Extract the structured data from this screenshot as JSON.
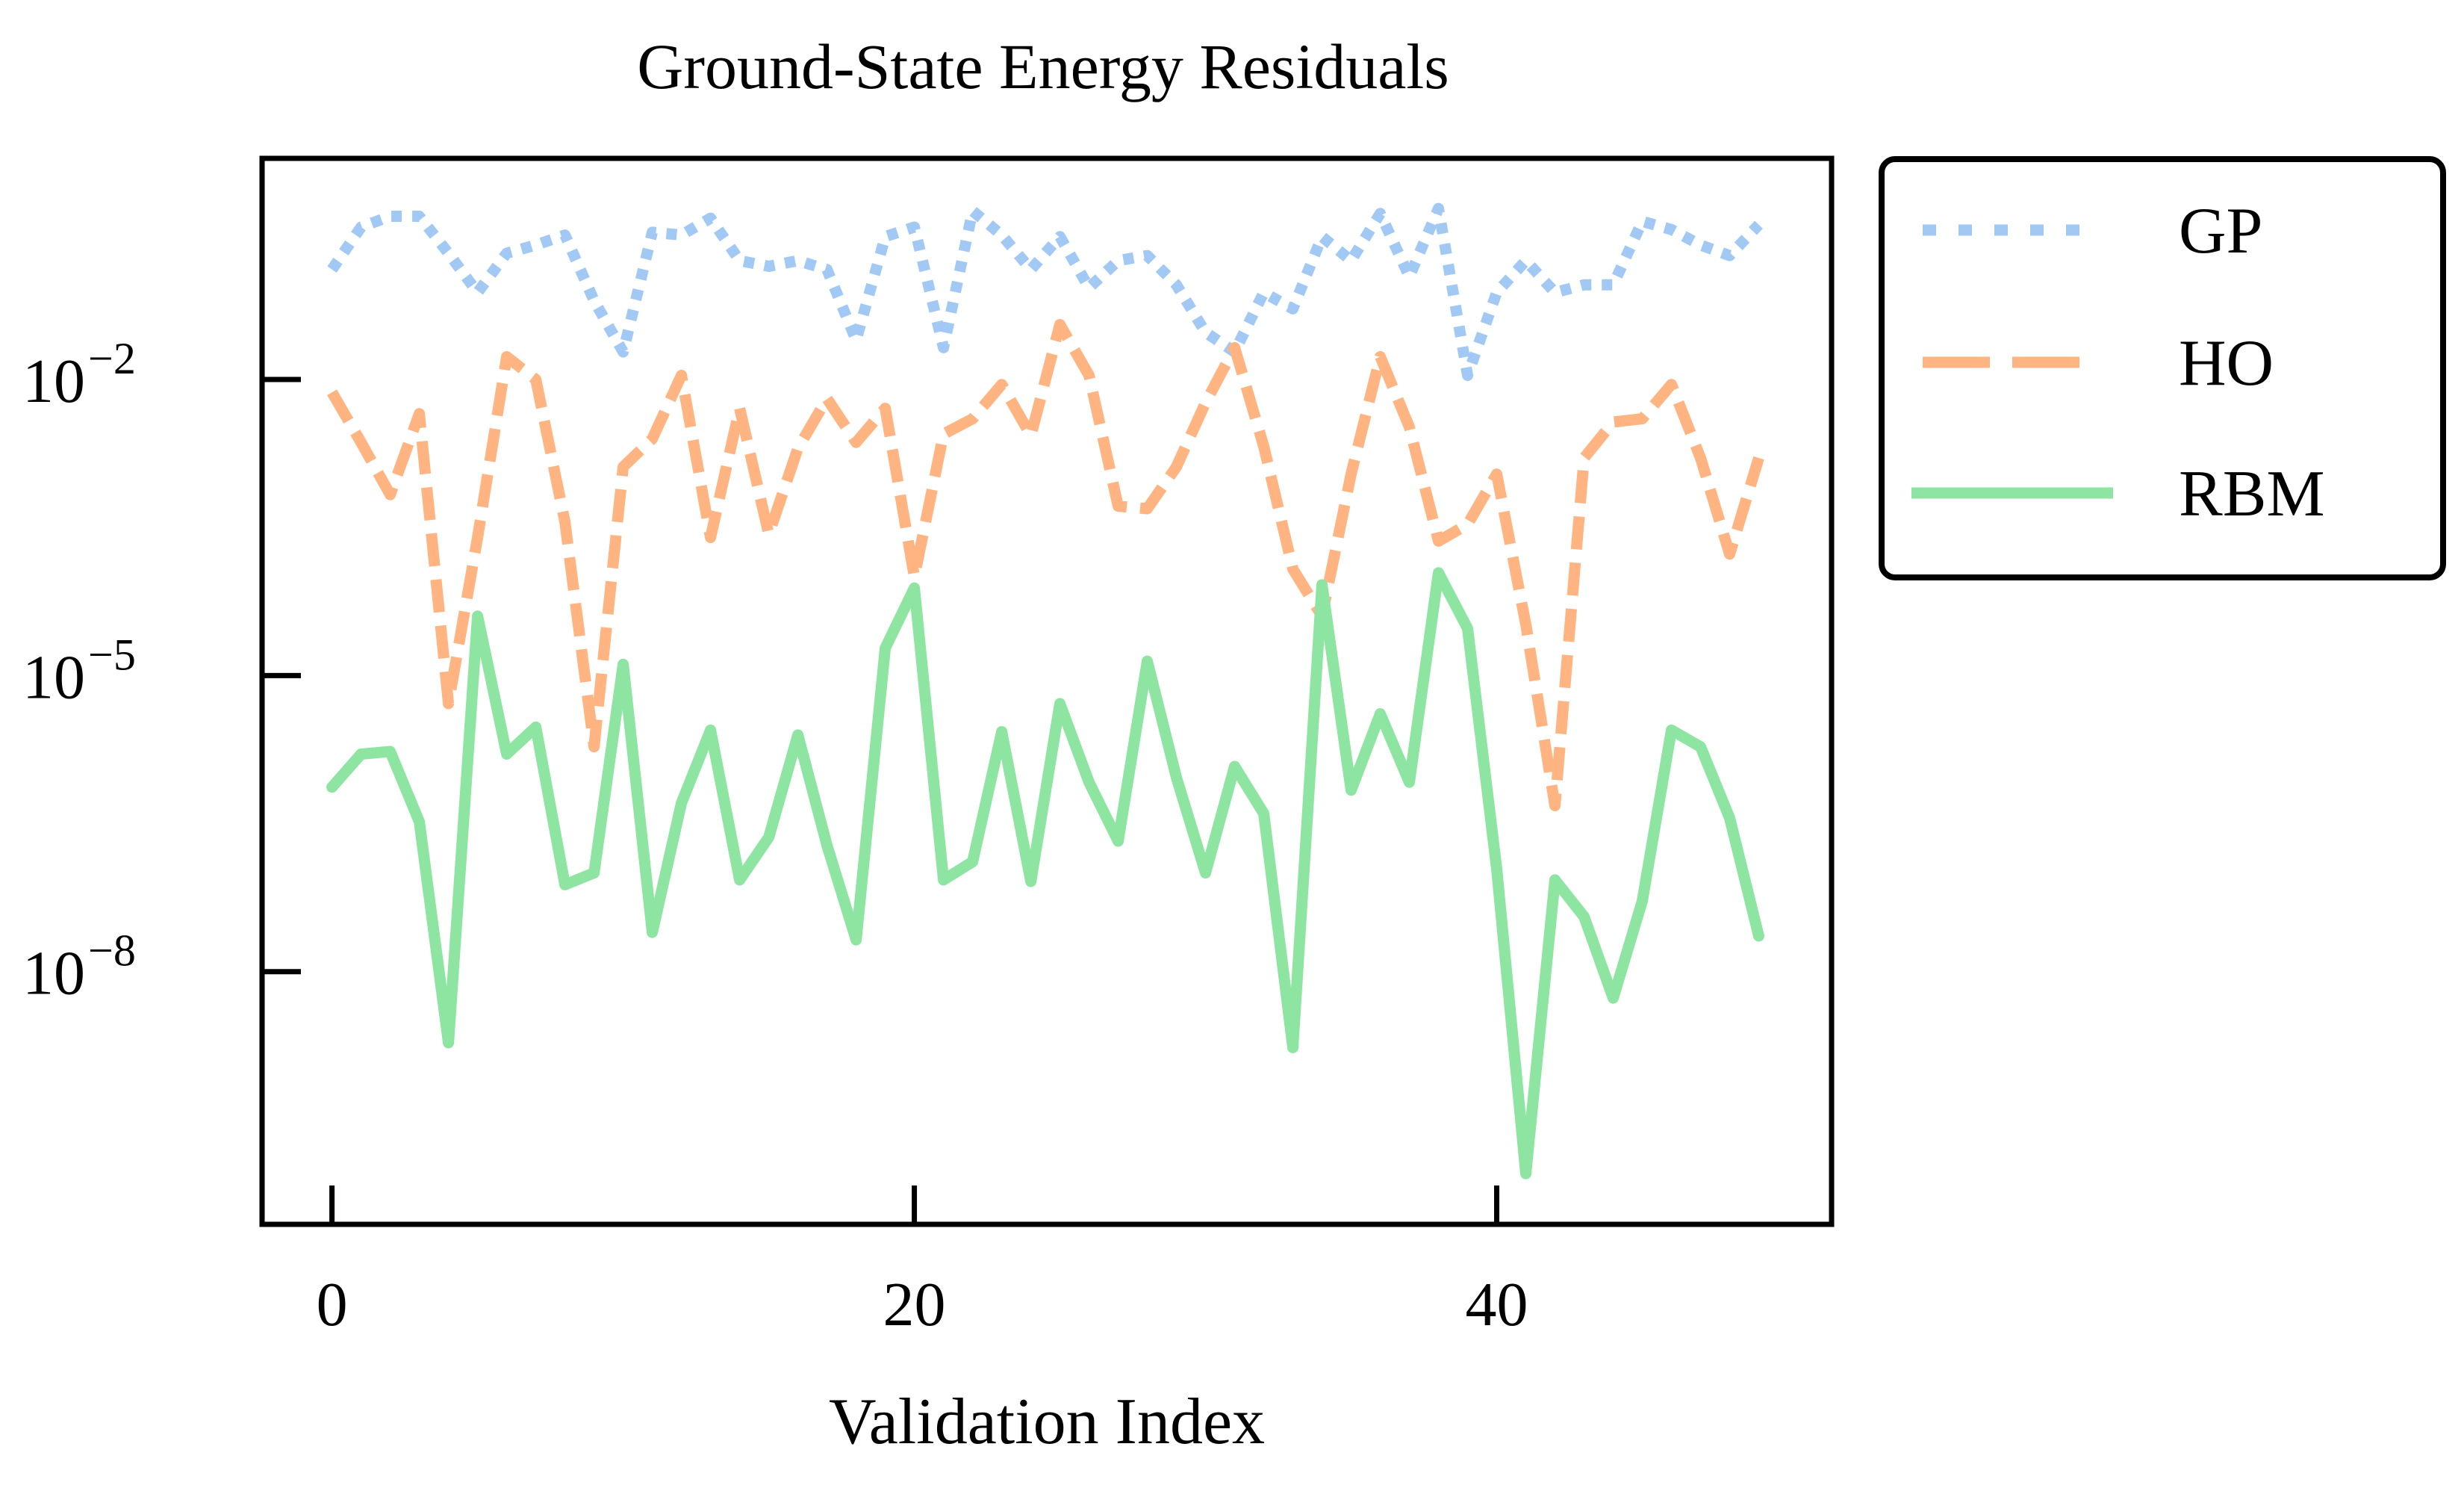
{
  "chart_data": {
    "type": "line",
    "title": "Ground-State Energy Residuals",
    "xlabel": "Validation Index",
    "ylabel": "",
    "yscale": "log",
    "xlim": [
      -2.4,
      51.5
    ],
    "ylim_log10": [
      -10.56,
      0.24
    ],
    "xticks": [
      0,
      20,
      40
    ],
    "xtick_labels": [
      "0",
      "20",
      "40"
    ],
    "yticks_log10": [
      -2,
      -5,
      -8
    ],
    "ytick_labels": [
      {
        "base": "10",
        "exp": "−2"
      },
      {
        "base": "10",
        "exp": "−5"
      },
      {
        "base": "10",
        "exp": "−8"
      }
    ],
    "grid": false,
    "legend": {
      "placement": "outside-top-right",
      "entries": [
        "GP",
        "HO",
        "RBM"
      ]
    },
    "x": [
      0,
      1,
      2,
      3,
      4,
      5,
      6,
      7,
      8,
      9,
      10,
      11,
      12,
      13,
      14,
      15,
      16,
      17,
      18,
      19,
      20,
      21,
      22,
      23,
      24,
      25,
      26,
      27,
      28,
      29,
      30,
      31,
      32,
      33,
      34,
      35,
      36,
      37,
      38,
      39,
      40,
      41,
      42,
      43,
      44,
      45,
      46,
      47,
      48,
      49
    ],
    "series": [
      {
        "name": "GP",
        "color": "#a1c9f4",
        "style": "dotted",
        "values": [
          0.13,
          0.35,
          0.45,
          0.45,
          0.19,
          0.076,
          0.19,
          0.23,
          0.29,
          0.063,
          0.019,
          0.31,
          0.29,
          0.43,
          0.16,
          0.14,
          0.16,
          0.13,
          0.025,
          0.28,
          0.35,
          0.021,
          0.51,
          0.29,
          0.13,
          0.28,
          0.085,
          0.16,
          0.18,
          0.091,
          0.03,
          0.019,
          0.076,
          0.052,
          0.28,
          0.16,
          0.48,
          0.11,
          0.54,
          0.011,
          0.076,
          0.16,
          0.076,
          0.091,
          0.091,
          0.4,
          0.33,
          0.23,
          0.18,
          0.37
        ]
      },
      {
        "name": "HO",
        "color": "#ffb482",
        "style": "dashed",
        "values": [
          0.0074,
          0.0023,
          0.00068,
          0.0045,
          5.2e-06,
          0.00025,
          0.017,
          0.01,
          0.00036,
          1.9e-06,
          0.0013,
          0.0025,
          0.011,
          0.00025,
          0.0051,
          0.00027,
          0.002,
          0.0064,
          0.0023,
          0.0051,
          0.0001,
          0.0028,
          0.004,
          0.0089,
          0.0027,
          0.036,
          0.011,
          0.00052,
          0.00049,
          0.0013,
          0.0058,
          0.021,
          0.0021,
          0.00012,
          4e-05,
          0.0011,
          0.017,
          0.0033,
          0.00023,
          0.00034,
          0.0011,
          3.3e-05,
          4.8e-07,
          0.0016,
          0.0037,
          0.004,
          0.0089,
          0.0016,
          0.00017,
          0.0016
        ]
      },
      {
        "name": "RBM",
        "color": "#8de5a1",
        "style": "solid",
        "values": [
          7.4e-07,
          1.6e-06,
          1.7e-06,
          3.3e-07,
          1.9e-09,
          4e-05,
          1.6e-06,
          3e-06,
          7.6e-08,
          1e-07,
          1.3e-05,
          2.5e-08,
          5.1e-07,
          2.8e-06,
          8.5e-08,
          2.3e-07,
          2.5e-06,
          1.9e-07,
          2.1e-08,
          1.9e-05,
          7.7e-05,
          8.5e-08,
          1.3e-07,
          2.7e-06,
          8.2e-08,
          5.2e-06,
          8.3e-07,
          2.1e-07,
          1.4e-05,
          9.3e-07,
          1e-07,
          1.2e-06,
          4e-07,
          1.7e-09,
          8.3e-05,
          6.9e-07,
          4.1e-06,
          8.3e-07,
          0.00011,
          3e-05,
          1.1e-07,
          9e-11,
          8.5e-08,
          3.6e-08,
          5.4e-09,
          5.2e-08,
          2.8e-06,
          1.9e-06,
          3.6e-07,
          2.3e-08
        ]
      }
    ]
  }
}
